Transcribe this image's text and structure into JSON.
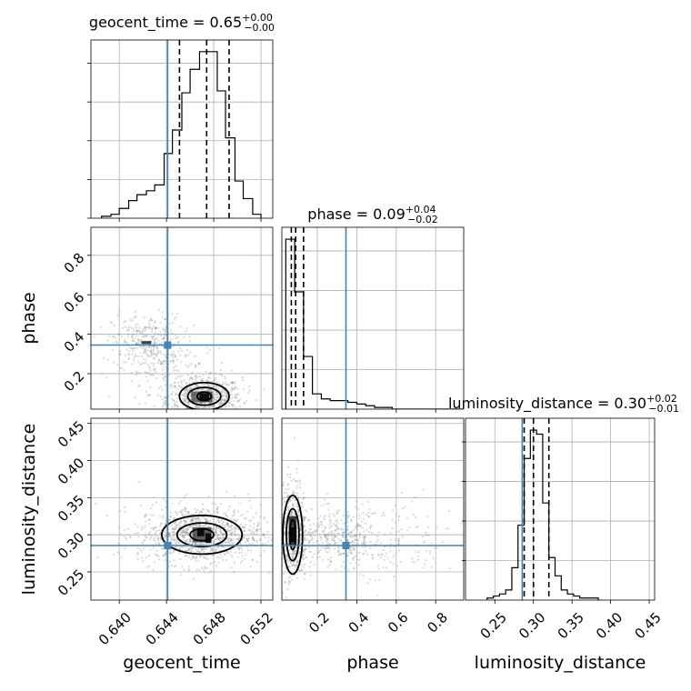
{
  "chart_data": {
    "type": "corner",
    "colors": {
      "truth": "#4682b4",
      "hist": "#000000",
      "points": "#777777",
      "grid": "#b0b0b0",
      "quantile": "#000000"
    },
    "parameters": [
      "geocent_time",
      "phase",
      "luminosity_distance"
    ],
    "truths": {
      "geocent_time": 0.6441,
      "phase": 0.345,
      "luminosity_distance": 0.2855
    },
    "titles": [
      {
        "param": "geocent_time",
        "text": "geocent_time = 0.65",
        "sup": "+0.00",
        "sub": "−0.00"
      },
      {
        "param": "phase",
        "text": "phase = 0.09",
        "sup": "+0.04",
        "sub": "−0.02"
      },
      {
        "param": "luminosity_distance",
        "text": "luminosity_distance = 0.30",
        "sup": "+0.02",
        "sub": "−0.01"
      }
    ],
    "axes": {
      "geocent_time": {
        "label": "geocent_time",
        "range": [
          0.6376,
          0.653
        ],
        "ticks": [
          0.64,
          0.644,
          0.648,
          0.652
        ],
        "tick_labels": [
          "0.640",
          "0.644",
          "0.648",
          "0.652"
        ]
      },
      "phase": {
        "label": "phase",
        "range": [
          0.02,
          0.942
        ],
        "ticks": [
          0.2,
          0.4,
          0.6,
          0.8
        ],
        "tick_labels": [
          "0.2",
          "0.4",
          "0.6",
          "0.8"
        ]
      },
      "luminosity_distance": {
        "label": "luminosity_distance",
        "range": [
          0.212,
          0.457
        ],
        "ticks": [
          0.25,
          0.3,
          0.35,
          0.4,
          0.45
        ],
        "tick_labels": [
          "0.25",
          "0.30",
          "0.35",
          "0.40",
          "0.45"
        ]
      }
    },
    "histograms": {
      "geocent_time": {
        "bin_edges": [
          0.6385,
          0.6393,
          0.64,
          0.6408,
          0.6415,
          0.6423,
          0.643,
          0.6438,
          0.6445,
          0.6453,
          0.646,
          0.6468,
          0.6475,
          0.6483,
          0.649,
          0.6498,
          0.6505,
          0.6513,
          0.652
        ],
        "counts": [
          1,
          2,
          5,
          9,
          12,
          14,
          17,
          33,
          45,
          64,
          76,
          85,
          85,
          65,
          41,
          19,
          10,
          2
        ],
        "quantiles": [
          0.6451,
          0.6474,
          0.6493
        ]
      },
      "phase": {
        "bin_edges": [
          0.04,
          0.085,
          0.13,
          0.175,
          0.22,
          0.265,
          0.31,
          0.355,
          0.4,
          0.445,
          0.49,
          0.535,
          0.58,
          0.625,
          0.67,
          0.715,
          0.76,
          0.805,
          0.85,
          0.895,
          0.94
        ],
        "counts": [
          100,
          69,
          31,
          9,
          6,
          5,
          5,
          4,
          3,
          2,
          1,
          1,
          0,
          0,
          0,
          0,
          0,
          0,
          0,
          0
        ],
        "quantiles": [
          0.068,
          0.09,
          0.13
        ]
      },
      "luminosity_distance": {
        "bin_edges": [
          0.24,
          0.248,
          0.256,
          0.264,
          0.272,
          0.28,
          0.288,
          0.296,
          0.304,
          0.312,
          0.32,
          0.328,
          0.336,
          0.344,
          0.352,
          0.36,
          0.368,
          0.376,
          0.384
        ],
        "counts": [
          1,
          2,
          3,
          5,
          16,
          37,
          70,
          84,
          82,
          48,
          21,
          12,
          5,
          3,
          2,
          1,
          1,
          1
        ],
        "quantiles": [
          0.288,
          0.3,
          0.32
        ]
      }
    },
    "scatter_clusters": [
      {
        "x": "geocent_time",
        "y": "phase",
        "n": 700,
        "cx": 0.6472,
        "cy": 0.08,
        "sx": 0.0016,
        "sy": 0.05
      },
      {
        "x": "geocent_time",
        "y": "phase",
        "n": 320,
        "cx": 0.6424,
        "cy": 0.36,
        "sx": 0.0015,
        "sy": 0.07
      },
      {
        "x": "geocent_time",
        "y": "phase",
        "n": 140,
        "cx": 0.6445,
        "cy": 0.22,
        "sx": 0.0025,
        "sy": 0.08
      },
      {
        "x": "geocent_time",
        "y": "luminosity_distance",
        "n": 1100,
        "cx": 0.6468,
        "cy": 0.3,
        "sx": 0.0026,
        "sy": 0.02
      },
      {
        "x": "phase",
        "y": "luminosity_distance",
        "n": 550,
        "cx": 0.07,
        "cy": 0.305,
        "sx": 0.04,
        "sy": 0.035
      },
      {
        "x": "phase",
        "y": "luminosity_distance",
        "n": 350,
        "cx": 0.3,
        "cy": 0.295,
        "sx": 0.12,
        "sy": 0.018
      },
      {
        "x": "phase",
        "y": "luminosity_distance",
        "n": 160,
        "cx": 0.55,
        "cy": 0.29,
        "sx": 0.18,
        "sy": 0.03
      }
    ],
    "density_blocks": [
      {
        "x": "geocent_time",
        "y": "phase",
        "x0": 0.6461,
        "x1": 0.6479,
        "y0": 0.055,
        "y1": 0.11,
        "shade": "#555555"
      },
      {
        "x": "geocent_time",
        "y": "phase",
        "x0": 0.6468,
        "x1": 0.6476,
        "y0": 0.06,
        "y1": 0.1,
        "shade": "#000000"
      },
      {
        "x": "geocent_time",
        "y": "phase",
        "x0": 0.6419,
        "x1": 0.6427,
        "y0": 0.35,
        "y1": 0.365,
        "shade": "#222222"
      },
      {
        "x": "geocent_time",
        "y": "luminosity_distance",
        "x0": 0.6462,
        "x1": 0.6478,
        "y0": 0.29,
        "y1": 0.31,
        "shade": "#444444"
      },
      {
        "x": "geocent_time",
        "y": "luminosity_distance",
        "x0": 0.6466,
        "x1": 0.6472,
        "y0": 0.298,
        "y1": 0.308,
        "shade": "#000000"
      },
      {
        "x": "geocent_time",
        "y": "luminosity_distance",
        "x0": 0.6473,
        "x1": 0.6478,
        "y0": 0.289,
        "y1": 0.302,
        "shade": "#000000"
      },
      {
        "x": "phase",
        "y": "luminosity_distance",
        "x0": 0.055,
        "x1": 0.095,
        "y0": 0.285,
        "y1": 0.325,
        "shade": "#222222"
      },
      {
        "x": "phase",
        "y": "luminosity_distance",
        "x0": 0.06,
        "x1": 0.09,
        "y0": 0.29,
        "y1": 0.31,
        "shade": "#000000"
      }
    ],
    "contours": [
      {
        "x": "geocent_time",
        "y": "phase",
        "cx": 0.6472,
        "cy": 0.085,
        "rx": [
          0.0006,
          0.0014,
          0.0021
        ],
        "ry": [
          0.022,
          0.045,
          0.07
        ]
      },
      {
        "x": "geocent_time",
        "y": "luminosity_distance",
        "cx": 0.647,
        "cy": 0.3,
        "rx": [
          0.001,
          0.0021,
          0.0034
        ],
        "ry": [
          0.008,
          0.016,
          0.026
        ]
      },
      {
        "x": "phase",
        "y": "luminosity_distance",
        "cx": 0.075,
        "cy": 0.3,
        "rx": [
          0.015,
          0.032,
          0.05
        ],
        "ry": [
          0.02,
          0.035,
          0.053
        ]
      }
    ]
  }
}
